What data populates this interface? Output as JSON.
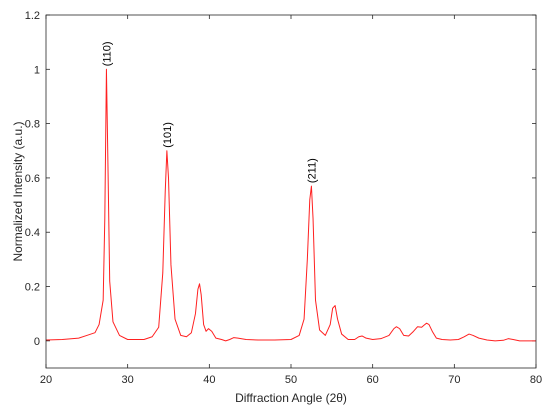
{
  "chart_data": {
    "type": "line",
    "title": "",
    "xlabel": "Diffraction Angle (2θ)",
    "ylabel": "Normalized Intensity (a.u.)",
    "xlim": [
      20,
      80
    ],
    "ylim": [
      -0.1,
      1.2
    ],
    "x_ticks": [
      20,
      30,
      40,
      50,
      60,
      70,
      80
    ],
    "y_ticks": [
      0,
      0.2,
      0.4,
      0.6,
      0.8,
      1,
      1.2
    ],
    "x_tick_labels": [
      "20",
      "30",
      "40",
      "50",
      "60",
      "70",
      "80"
    ],
    "y_tick_labels": [
      "0",
      "0.2",
      "0.4",
      "0.6",
      "0.8",
      "1",
      "1.2"
    ],
    "grid": false,
    "series_color": "#ff2020",
    "series": [
      {
        "x": [
          20,
          22,
          24,
          25,
          26,
          26.5,
          27,
          27.2,
          27.4,
          27.6,
          27.8,
          28.2,
          29,
          30,
          31,
          32,
          33,
          33.8,
          34.3,
          34.6,
          34.8,
          35,
          35.3,
          35.8,
          36.5,
          37.2,
          37.8,
          38.3,
          38.6,
          38.8,
          39,
          39.3,
          39.6,
          39.9,
          40.3,
          40.8,
          41.5,
          42,
          42.5,
          43,
          43.5,
          44.5,
          46,
          48,
          50,
          51,
          51.6,
          52,
          52.3,
          52.5,
          52.7,
          53,
          53.5,
          54.2,
          54.8,
          55.1,
          55.4,
          55.7,
          56.2,
          57,
          57.8,
          58.3,
          58.7,
          59.2,
          60,
          61,
          62,
          62.6,
          62.9,
          63.3,
          63.8,
          64.4,
          65,
          65.5,
          66,
          66.3,
          66.6,
          66.9,
          67.3,
          67.8,
          68.5,
          69.5,
          70.5,
          71.2,
          71.8,
          72.3,
          73,
          74,
          75,
          76,
          76.6,
          77.2,
          78,
          79,
          80
        ],
        "values": [
          0.003,
          0.005,
          0.01,
          0.02,
          0.03,
          0.06,
          0.15,
          0.45,
          1.0,
          0.62,
          0.22,
          0.07,
          0.02,
          0.005,
          0.005,
          0.005,
          0.015,
          0.05,
          0.25,
          0.55,
          0.7,
          0.6,
          0.28,
          0.08,
          0.02,
          0.015,
          0.03,
          0.1,
          0.19,
          0.21,
          0.17,
          0.06,
          0.035,
          0.045,
          0.035,
          0.01,
          0.005,
          0.0,
          0.005,
          0.012,
          0.01,
          0.005,
          0.003,
          0.003,
          0.005,
          0.02,
          0.08,
          0.3,
          0.52,
          0.57,
          0.45,
          0.15,
          0.04,
          0.02,
          0.06,
          0.12,
          0.13,
          0.08,
          0.025,
          0.005,
          0.005,
          0.015,
          0.018,
          0.01,
          0.005,
          0.008,
          0.02,
          0.045,
          0.052,
          0.045,
          0.02,
          0.018,
          0.035,
          0.052,
          0.05,
          0.058,
          0.065,
          0.06,
          0.035,
          0.01,
          0.005,
          0.003,
          0.005,
          0.015,
          0.025,
          0.02,
          0.01,
          0.003,
          0.0,
          0.002,
          0.008,
          0.005,
          0.0,
          0.0,
          0.0
        ]
      }
    ],
    "annotations": [
      {
        "text": "(110)",
        "x": 27.4,
        "y": 1.0
      },
      {
        "text": "(101)",
        "x": 34.8,
        "y": 0.7
      },
      {
        "text": "(211)",
        "x": 52.5,
        "y": 0.57
      }
    ]
  }
}
